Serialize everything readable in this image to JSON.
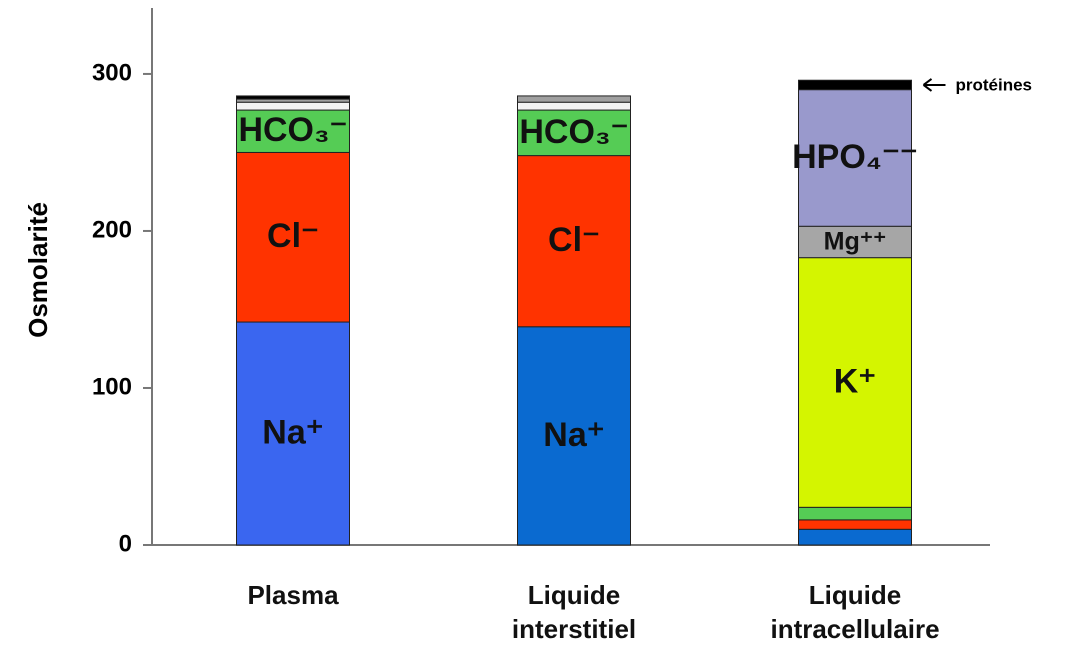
{
  "chart_data": {
    "type": "stacked_bar",
    "y_label": "Osmolarité",
    "categories": [
      "Plasma",
      "Liquide interstitiel",
      "Liquide intracellulaire"
    ],
    "series": [
      {
        "name": "Na⁺",
        "colors": [
          "#3a66f0",
          "#0a6ad0",
          "#0a6ad0"
        ],
        "values": [
          142,
          139,
          10
        ]
      },
      {
        "name": "Cl⁻",
        "color": "#ff3300",
        "values": [
          108,
          109,
          6
        ]
      },
      {
        "name": "HCO₃⁻",
        "color": "#55cc55",
        "values": [
          27,
          29,
          8
        ]
      },
      {
        "color": "#f2f2f2",
        "values": [
          5,
          5,
          null
        ]
      },
      {
        "color": "#a0a0a0",
        "values": [
          2,
          4,
          null
        ]
      },
      {
        "name": "K⁺",
        "color": "#d4f500",
        "values": [
          null,
          null,
          159
        ]
      },
      {
        "name": "Mg⁺⁺",
        "color": "#a6a6a6",
        "values": [
          null,
          null,
          20
        ]
      },
      {
        "name": "HPO₄⁻⁻",
        "color": "#9999cc",
        "values": [
          null,
          null,
          87
        ]
      },
      {
        "name": "protéines",
        "color": "#000000",
        "values": [
          2,
          null,
          6
        ],
        "annotate": true
      }
    ],
    "ylim": [
      0,
      342
    ],
    "yticks": [
      0,
      100,
      200,
      300
    ]
  }
}
